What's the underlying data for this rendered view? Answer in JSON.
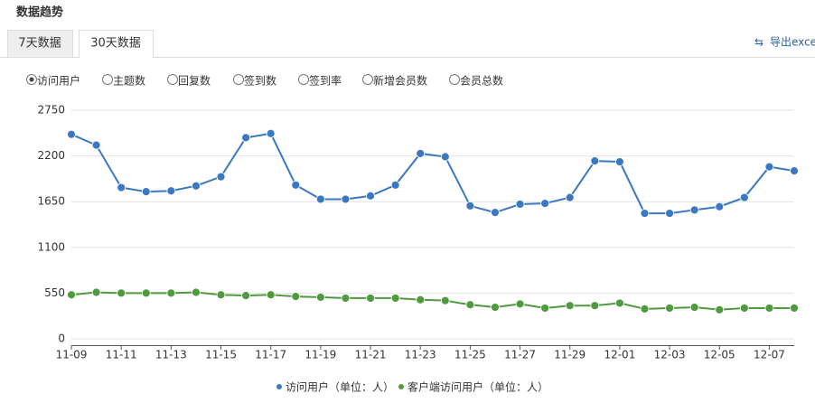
{
  "header": {
    "title": "数据趋势"
  },
  "tabs": [
    "7天数据",
    "30天数据"
  ],
  "active_tab": 1,
  "export": "导出excel",
  "options": [
    "访问用户",
    "主题数",
    "回复数",
    "签到数",
    "签到率",
    "新增会员数",
    "会员总数"
  ],
  "selected_option": 0,
  "chart_data": {
    "type": "line",
    "categories": [
      "11-09",
      null,
      "11-11",
      null,
      "11-13",
      null,
      "11-15",
      null,
      "11-17",
      null,
      "11-19",
      null,
      "11-21",
      null,
      "11-23",
      null,
      "11-25",
      null,
      "11-27",
      null,
      "11-29",
      null,
      "12-01",
      null,
      "12-03",
      null,
      "12-05",
      null,
      "12-07",
      null
    ],
    "series": [
      {
        "name": "访问用户（单位：人）",
        "color": "#3a78c4",
        "values": [
          2460,
          2330,
          1820,
          1770,
          1780,
          1840,
          1950,
          2420,
          2470,
          1850,
          1680,
          1680,
          1720,
          1850,
          2230,
          2190,
          1600,
          1520,
          1620,
          1630,
          1700,
          2140,
          2130,
          1510,
          1510,
          1550,
          1590,
          1700,
          2070,
          2020
        ]
      },
      {
        "name": "客户端访问用户（单位：人）",
        "color": "#4f9a3e",
        "values": [
          530,
          560,
          550,
          550,
          550,
          560,
          530,
          520,
          530,
          510,
          500,
          490,
          490,
          490,
          470,
          460,
          410,
          380,
          420,
          370,
          400,
          400,
          430,
          360,
          370,
          380,
          350,
          370,
          370,
          370
        ]
      }
    ],
    "ylim": [
      0,
      2750
    ],
    "yticks": [
      0,
      550,
      1100,
      1650,
      2200,
      2750
    ],
    "grid": true
  }
}
